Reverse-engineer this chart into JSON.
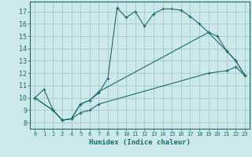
{
  "xlabel": "Humidex (Indice chaleur)",
  "bg_color": "#cde8e8",
  "grid_color": "#aacccc",
  "line_color": "#1a6b6b",
  "xlim": [
    -0.5,
    23.5
  ],
  "ylim": [
    7.5,
    17.8
  ],
  "xticks": [
    0,
    1,
    2,
    3,
    4,
    5,
    6,
    7,
    8,
    9,
    10,
    11,
    12,
    13,
    14,
    15,
    16,
    17,
    18,
    19,
    20,
    21,
    22,
    23
  ],
  "yticks": [
    8,
    9,
    10,
    11,
    12,
    13,
    14,
    15,
    16,
    17
  ],
  "line1_x": [
    0,
    1,
    2,
    3,
    4,
    5,
    6,
    7,
    8,
    9,
    10,
    11,
    12,
    13,
    14,
    15,
    16,
    17,
    18,
    19,
    20,
    21,
    22,
    23
  ],
  "line1_y": [
    10.0,
    10.7,
    9.0,
    8.2,
    8.3,
    9.5,
    9.8,
    10.4,
    11.6,
    17.3,
    16.5,
    17.0,
    15.8,
    16.8,
    17.2,
    17.2,
    17.1,
    16.6,
    16.0,
    15.3,
    15.0,
    13.8,
    13.0,
    11.8
  ],
  "line2_x": [
    0,
    2,
    3,
    4,
    5,
    6,
    7,
    19,
    21,
    22,
    23
  ],
  "line2_y": [
    10.0,
    9.0,
    8.2,
    8.3,
    9.5,
    9.8,
    10.5,
    15.3,
    13.8,
    13.0,
    11.8
  ],
  "line3_x": [
    0,
    2,
    3,
    4,
    5,
    6,
    7,
    19,
    21,
    22,
    23
  ],
  "line3_y": [
    10.0,
    9.0,
    8.2,
    8.3,
    8.8,
    9.0,
    9.5,
    12.0,
    12.2,
    12.5,
    11.8
  ]
}
